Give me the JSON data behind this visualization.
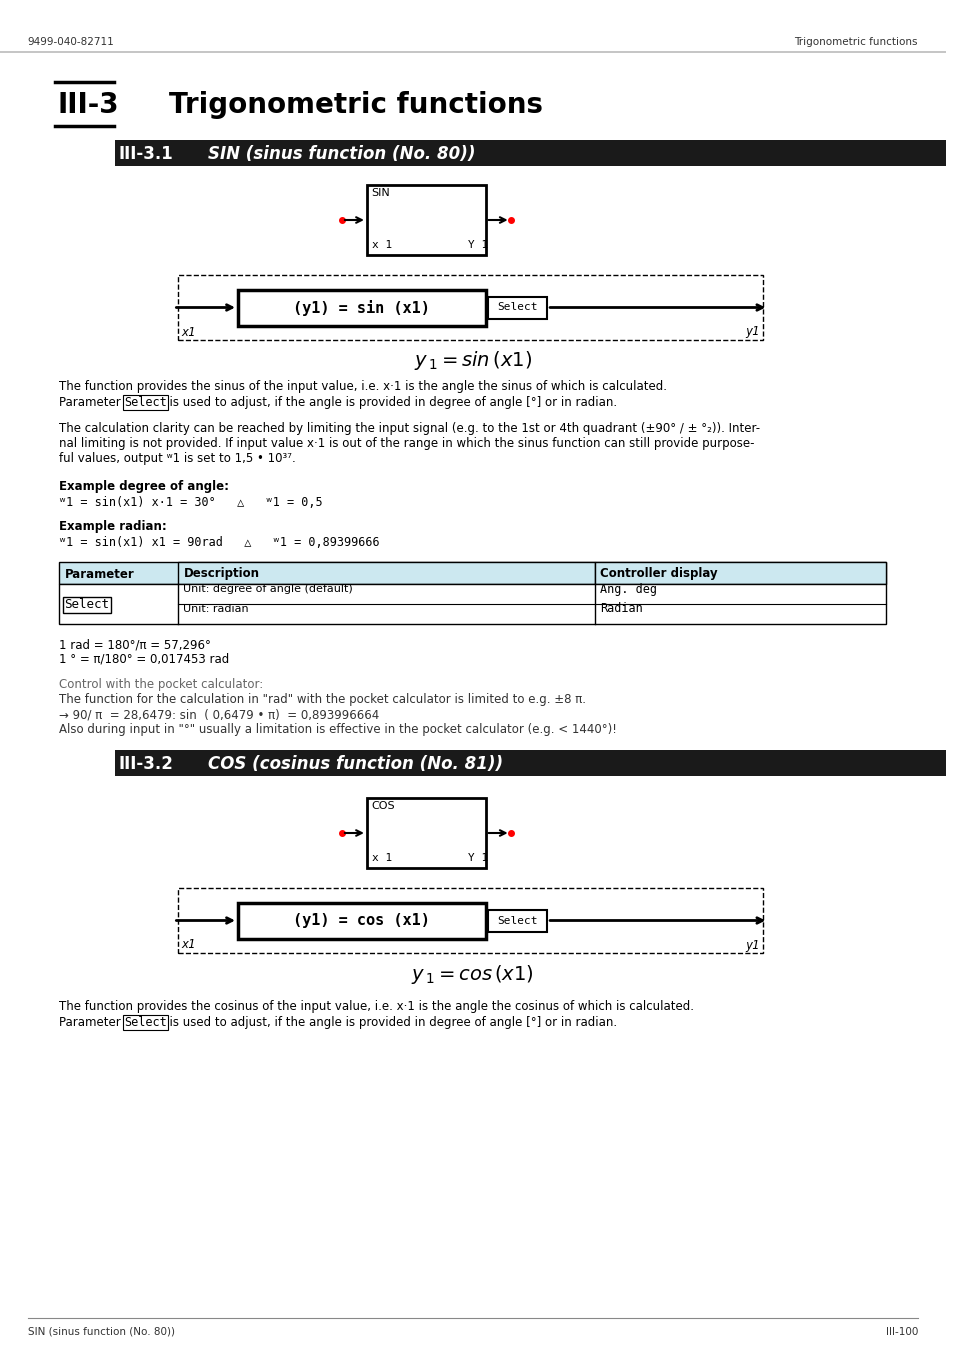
{
  "page_header_left": "9499-040-82711",
  "page_header_right": "Trigonometric functions",
  "header_line_color": "#aaaaaa",
  "chapter_number": "III-3",
  "chapter_title": "Trigonometric functions",
  "section1_number": "III-3.1",
  "section1_title": "SIN (sinus function (No. 80))",
  "section2_number": "III-3.2",
  "section2_title": "COS (cosinus function (No. 81))",
  "section_header_bg": "#1a1a1a",
  "section_header_fg": "#ffffff",
  "section_number_fg": "#1a1a1a",
  "body_text_color": "#1a1a1a",
  "table_header_bg": "#cce8f0",
  "table_border_color": "#000000",
  "page_footer_left": "SIN (sinus function (No. 80))",
  "page_footer_right": "III-100",
  "formula1": "$y_1 = sin\\,(x1)$",
  "formula2": "$y_1 = cos\\,(x1)$",
  "body1_para1": "The function provides the sinus of the input value, i.e. ×1 is the angle the sinus of which is calculated.\nParameter Select is used to adjust, if the angle is provided in degree of angle [°] or in radian.",
  "body1_para2": "The calculation clarity can be reached by limiting the input signal (e.g. to the 1st or 4th quadrant (±90° / ± °₂)). Inter-\nnal limiting is not provided. If input value ×1 is out of the range in which the sinus function can still provide purpose-\nful values, output ʷ1 is set to 1,5 • 10³⁷.",
  "example_degree_label": "Example degree of angle:",
  "example_degree_text": "ʷ1 = sin(x1) ×1 = 30°   △   ʷ1 = 0,5",
  "example_radian_label": "Example radian:",
  "example_radian_text": "ʷ1 = sin(x1) x1 = 90rad   △   ʷ1 = 0,89399666",
  "table_col1_header": "Parameter",
  "table_col2_header": "Description",
  "table_col3_header": "Controller display",
  "table_row1_col1": "Select",
  "table_row1_col2a": "Unit: degree of angle (default)",
  "table_row1_col3a": "Ang. deg",
  "table_row1_col2b": "Unit: radian",
  "table_row1_col3b": "Radian",
  "rad_text1": "1 rad = 180°/π = 57,296°",
  "rad_text2": "1 ° = π/180° = 0,017453 rad",
  "calc_text1": "Control with the pocket calculator:",
  "calc_text2": "The function for the calculation in \"rad\" with the pocket calculator is limited to e.g. ±8 π.",
  "calc_text3": "→ 90/ π  = 28,6479: sin  ( 0,6479 • π)  = 0,893996664",
  "calc_text4": "Also during input in \"°\" usually a limitation is effective in the pocket calculator (e.g. < 1440°)!",
  "body2_para1": "The function provides the cosinus of the input value, i.e. ×1 is the angle the cosinus of which is calculated.\nParameter Select is used to adjust, if the angle is provided in degree of angle [°] or in radian."
}
